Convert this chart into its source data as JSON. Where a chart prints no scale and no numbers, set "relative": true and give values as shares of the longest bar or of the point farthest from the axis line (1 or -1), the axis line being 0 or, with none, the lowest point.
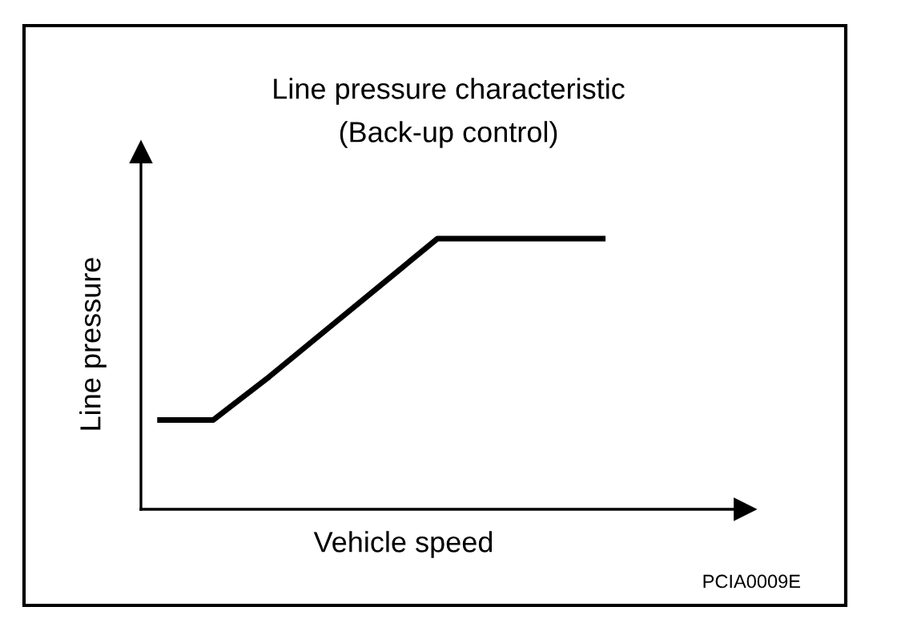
{
  "chart_data": {
    "type": "line",
    "title": "Line pressure characteristic",
    "subtitle": "(Back-up control)",
    "xlabel": "Vehicle speed",
    "ylabel": "Line pressure",
    "categories": [
      null,
      null,
      null,
      null,
      null,
      null,
      null,
      null,
      null
    ],
    "relative": true,
    "series": [
      {
        "color": "#000000",
        "values": [
          0.33,
          0.33,
          0.49,
          0.66,
          0.83,
          1,
          1,
          1,
          1
        ]
      }
    ],
    "annotations": [
      "PCIA0009E"
    ],
    "grid": false,
    "legend": false,
    "marker": "none",
    "line_style": "solid"
  }
}
